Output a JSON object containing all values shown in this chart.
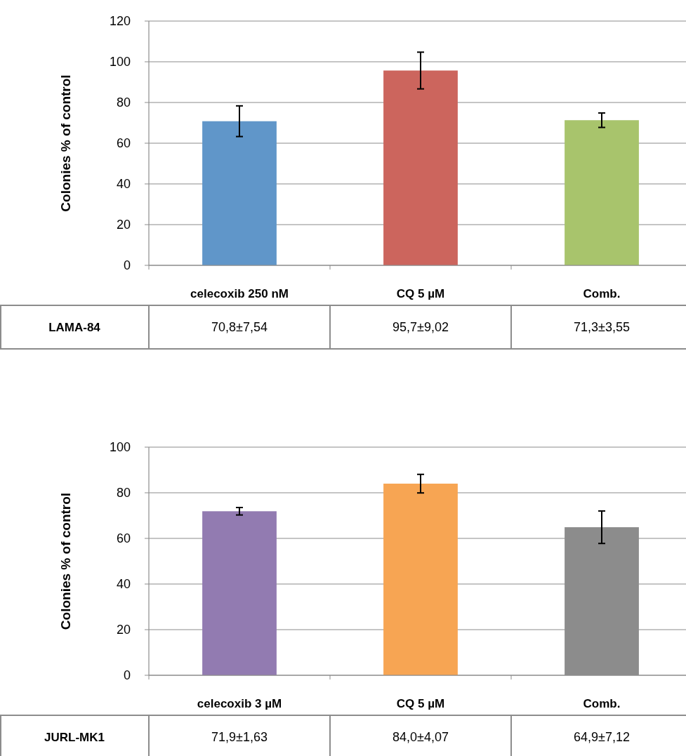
{
  "chart_data": [
    {
      "type": "bar",
      "ylabel": "Colonies % of control",
      "categories": [
        "celecoxib 250 nM",
        "CQ 5 µM",
        "Comb."
      ],
      "ylim": [
        0,
        120
      ],
      "yticks": [
        0,
        20,
        40,
        60,
        80,
        100,
        120
      ],
      "grid": "y",
      "series": [
        {
          "name": "LAMA-84",
          "colors": [
            "#6096c9",
            "#cc655d",
            "#a8c46c"
          ],
          "values": [
            70.8,
            95.7,
            71.3
          ],
          "errors": [
            7.54,
            9.02,
            3.55
          ],
          "value_labels": [
            "70,8±7,54",
            "95,7±9,02",
            "71,3±3,55"
          ]
        }
      ]
    },
    {
      "type": "bar",
      "ylabel": "Colonies % of control",
      "categories": [
        "celecoxib 3 µM",
        "CQ 5 µM",
        "Comb."
      ],
      "ylim": [
        0,
        100
      ],
      "yticks": [
        0,
        20,
        40,
        60,
        80,
        100
      ],
      "grid": "y",
      "series": [
        {
          "name": "JURL-MK1",
          "colors": [
            "#927bb1",
            "#f7a553",
            "#8c8c8c"
          ],
          "values": [
            71.9,
            84.0,
            64.9
          ],
          "errors": [
            1.63,
            4.07,
            7.12
          ],
          "value_labels": [
            "71,9±1,63",
            "84,0±4,07",
            "64,9±7,12"
          ]
        }
      ]
    }
  ]
}
